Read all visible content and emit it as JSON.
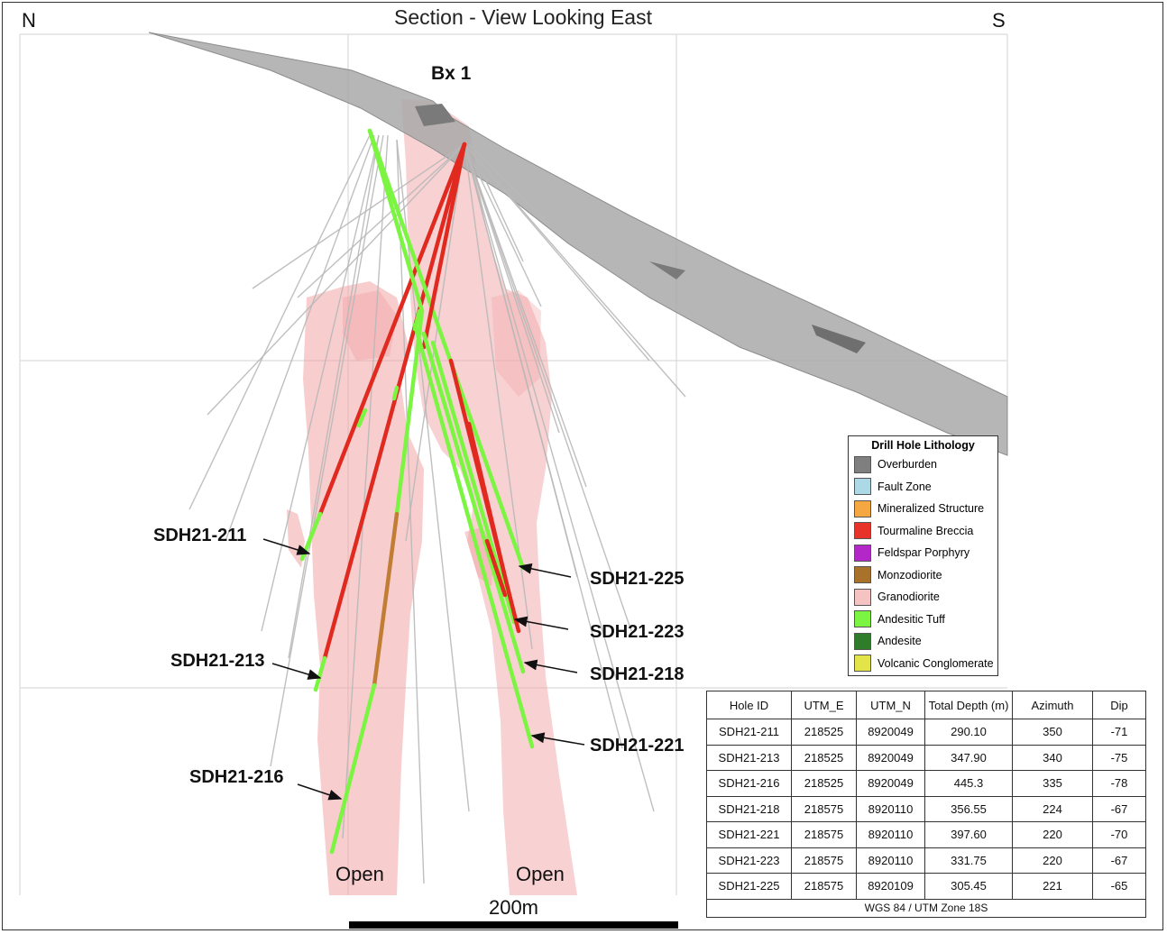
{
  "title": "Section - View Looking East",
  "north": "N",
  "south": "S",
  "breccia_label": "Bx 1",
  "open_labels": [
    "Open",
    "Open"
  ],
  "scale_label": "200m",
  "hole_labels": {
    "sdh211": "SDH21-211",
    "sdh213": "SDH21-213",
    "sdh216": "SDH21-216",
    "sdh225": "SDH21-225",
    "sdh223": "SDH21-223",
    "sdh218": "SDH21-218",
    "sdh221": "SDH21-221"
  },
  "legend": {
    "title": "Drill Hole Lithology",
    "items": [
      {
        "label": "Overburden",
        "color": "#7f7f7f"
      },
      {
        "label": "Fault Zone",
        "color": "#add8e6"
      },
      {
        "label": "Mineralized Structure",
        "color": "#f5a742"
      },
      {
        "label": "Tourmaline Breccia",
        "color": "#e8332a"
      },
      {
        "label": "Feldspar Porphyry",
        "color": "#b327c9"
      },
      {
        "label": "Monzodiorite",
        "color": "#a8722a"
      },
      {
        "label": "Granodiorite",
        "color": "#f6c3c3"
      },
      {
        "label": "Andesitic Tuff",
        "color": "#7cf542"
      },
      {
        "label": "Andesite",
        "color": "#2f7d2a"
      },
      {
        "label": "Volcanic Conglomerate",
        "color": "#e3e34a"
      }
    ]
  },
  "table": {
    "headers": [
      "Hole ID",
      "UTM_E",
      "UTM_N",
      "Total Depth (m)",
      "Azimuth",
      "Dip"
    ],
    "rows": [
      [
        "SDH21-211",
        "218525",
        "8920049",
        "290.10",
        "350",
        "-71"
      ],
      [
        "SDH21-213",
        "218525",
        "8920049",
        "347.90",
        "340",
        "-75"
      ],
      [
        "SDH21-216",
        "218525",
        "8920049",
        "445.3",
        "335",
        "-78"
      ],
      [
        "SDH21-218",
        "218575",
        "8920110",
        "356.55",
        "224",
        "-67"
      ],
      [
        "SDH21-221",
        "218575",
        "8920110",
        "397.60",
        "220",
        "-70"
      ],
      [
        "SDH21-223",
        "218575",
        "8920110",
        "331.75",
        "220",
        "-67"
      ],
      [
        "SDH21-225",
        "218575",
        "8920109",
        "305.45",
        "221",
        "-65"
      ]
    ],
    "footer": "WGS 84 / UTM Zone 18S"
  }
}
